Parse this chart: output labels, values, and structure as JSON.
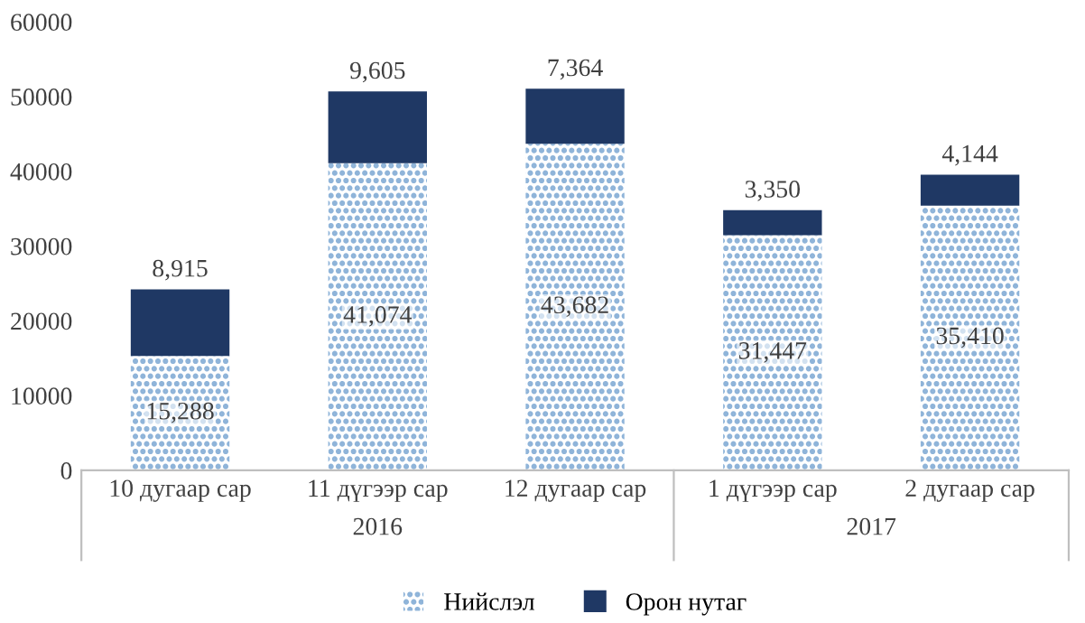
{
  "chart_data": {
    "type": "bar",
    "stacked": true,
    "categories": [
      "10 дугаар сар",
      "11 дүгээр сар",
      "12 дугаар сар",
      "1 дүгээр сар",
      "2 дугаар сар"
    ],
    "series": [
      {
        "name": "Нийслэл",
        "color": "#8fb4d9",
        "values": [
          15288,
          41074,
          43682,
          31447,
          35410
        ],
        "value_labels": [
          "15,288",
          "41,074",
          "43,682",
          "31,447",
          "35,410"
        ]
      },
      {
        "name": "Орон нутаг",
        "color": "#1f3864",
        "values": [
          8915,
          9605,
          7364,
          3350,
          4144
        ],
        "value_labels": [
          "8,915",
          "9,605",
          "7,364",
          "3,350",
          "4,144"
        ]
      }
    ],
    "ylim": [
      0,
      60000
    ],
    "yticks": [
      0,
      10000,
      20000,
      30000,
      40000,
      50000,
      60000
    ],
    "grid": false,
    "legend": "bottom",
    "annotations": [
      "2016",
      "2017"
    ]
  }
}
